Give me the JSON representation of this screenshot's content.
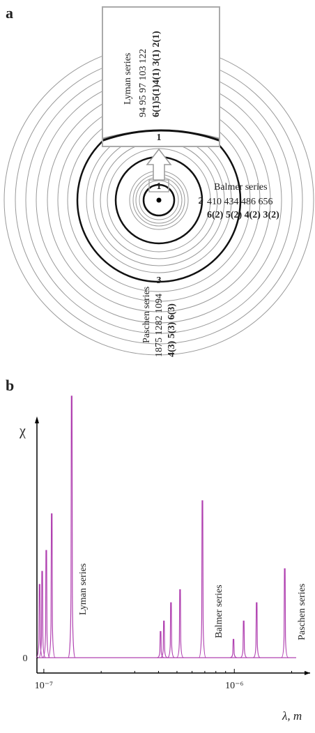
{
  "diagram": {
    "panel_label": "a",
    "orbits": [
      "1",
      "2",
      "3"
    ],
    "inset_orbit": "1",
    "lyman": {
      "name": "Lyman series",
      "wavelengths": "94  95  97  103  122",
      "transitions": "6(1)5(1)4(1) 3(1) 2(1)"
    },
    "balmer": {
      "name": "Balmer series",
      "wavelengths": "410  434  486  656",
      "transitions": "6(2) 5(2) 4(2) 3(2)"
    },
    "paschen": {
      "name": "Paschen series",
      "wavelengths": "1875  1282  1094",
      "transitions": "4(3)  5(3)  6(3)"
    }
  },
  "chart_data": {
    "type": "spectrum",
    "panel_label": "b",
    "color": "#b040b0",
    "y_label": "χ",
    "x_label": "λ, m",
    "log_x": true,
    "xlim": [
      9.2e-08,
      2.5e-06
    ],
    "xticks": [
      {
        "value": 1e-07,
        "label": "10⁻⁷"
      },
      {
        "value": 1e-06,
        "label": "10⁻⁶"
      }
    ],
    "ylim": [
      0,
      100
    ],
    "yticks": [
      0
    ],
    "annotations": [
      "Lyman series",
      "Balmer series",
      "Paschen series"
    ],
    "x": [
      9.5e-08,
      9.8e-08,
      1.03e-07,
      1.1e-07,
      1.4e-07,
      4.1e-07,
      4.27e-07,
      4.65e-07,
      5.19e-07,
      6.8e-07,
      9.9e-07,
      1.12e-06,
      1.31e-06,
      1.84e-06
    ],
    "values": [
      28,
      33,
      41,
      55,
      100,
      10,
      14,
      21,
      26,
      60,
      7,
      14,
      21,
      34
    ]
  }
}
